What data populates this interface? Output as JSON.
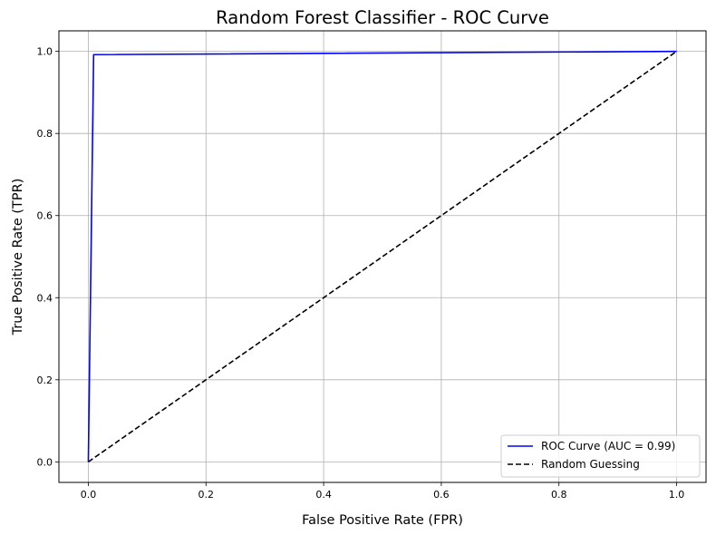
{
  "chart_data": {
    "type": "line",
    "title": "Random Forest Classifier - ROC Curve",
    "xlabel": "False Positive Rate (FPR)",
    "ylabel": "True Positive Rate (TPR)",
    "xlim": [
      -0.05,
      1.05
    ],
    "ylim": [
      -0.05,
      1.05
    ],
    "xticks": [
      0.0,
      0.2,
      0.4,
      0.6,
      0.8,
      1.0
    ],
    "yticks": [
      0.0,
      0.2,
      0.4,
      0.6,
      0.8,
      1.0
    ],
    "xtick_labels": [
      "0.0",
      "0.2",
      "0.4",
      "0.6",
      "0.8",
      "1.0"
    ],
    "ytick_labels": [
      "0.0",
      "0.2",
      "0.4",
      "0.6",
      "0.8",
      "1.0"
    ],
    "grid": true,
    "legend_position": "bottom-right",
    "series": [
      {
        "name": "ROC Curve (AUC = 0.99)",
        "color": "#0000ff",
        "style": "solid",
        "x": [
          0.0,
          0.009,
          1.0
        ],
        "y": [
          0.0,
          0.992,
          1.0
        ]
      },
      {
        "name": "Random Guessing",
        "color": "#000000",
        "style": "dashed",
        "x": [
          0.0,
          1.0
        ],
        "y": [
          0.0,
          1.0
        ]
      }
    ]
  }
}
